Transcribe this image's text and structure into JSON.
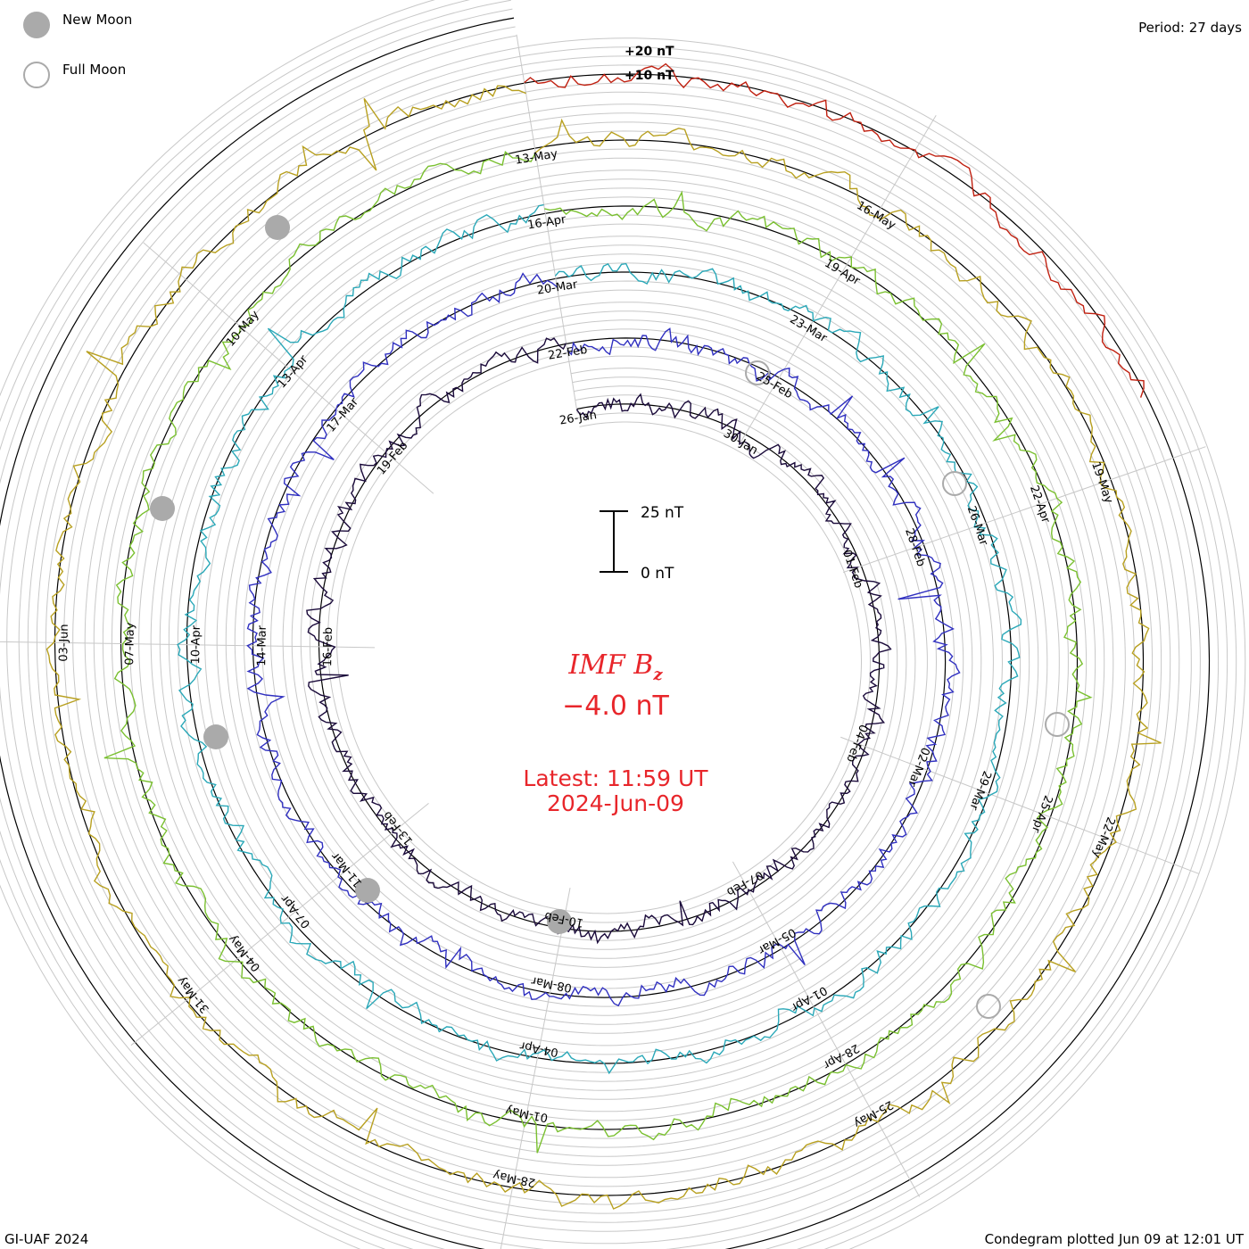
{
  "legend": {
    "new_moon_label": "New Moon",
    "full_moon_label": "Full Moon",
    "new_moon_color": "#aaaaaa",
    "full_moon_color": "#aaaaaa"
  },
  "period_label": "Period: 27 days",
  "credit": "GI-UAF 2024",
  "plotted_label": "Condegram plotted Jun 09 at 12:01 UT",
  "center": {
    "title_main": "IMF B",
    "title_sub": "z",
    "value": "−4.0 nT",
    "latest": "Latest: 11:59 UT",
    "date": "2024-Jun-09",
    "color": "#e8262b"
  },
  "chart_data": {
    "type": "line",
    "subtype": "condegram (spiral time series)",
    "title": "IMF Bz",
    "units": "nT",
    "period_days": 27,
    "latest_value": -4.0,
    "scale_bar": {
      "top_label": "25 nT",
      "bottom_label": "0 nT",
      "span_nT": 25
    },
    "reference_labels": [
      "+20 nT",
      "+10 nT"
    ],
    "cycles": [
      {
        "color": "#1a0a3a",
        "date_labels": [
          "26-Jan",
          "30-Jan",
          "01-Feb",
          "04-Feb",
          "07-Feb",
          "10-Feb",
          "13-Feb",
          "16-Feb",
          "19-Feb"
        ]
      },
      {
        "color": "#3030c0",
        "date_labels": [
          "22-Feb",
          "25-Feb",
          "28-Feb",
          "02-Mar",
          "05-Mar",
          "08-Mar",
          "11-Mar",
          "14-Mar",
          "17-Mar"
        ]
      },
      {
        "color": "#2aa8b8",
        "date_labels": [
          "20-Mar",
          "23-Mar",
          "26-Mar",
          "29-Mar",
          "01-Apr",
          "04-Apr",
          "07-Apr",
          "10-Apr",
          "13-Apr"
        ]
      },
      {
        "color": "#7ac030",
        "date_labels": [
          "16-Apr",
          "19-Apr",
          "22-Apr",
          "25-Apr",
          "28-Apr",
          "01-May",
          "04-May",
          "07-May",
          "10-May"
        ]
      },
      {
        "color": "#b8a020",
        "date_labels": [
          "13-May",
          "16-May",
          "19-May",
          "22-May",
          "25-May",
          "28-May",
          "31-May",
          "03-Jun"
        ]
      },
      {
        "color": "#c02010",
        "date_labels": []
      }
    ],
    "new_moon_dates": [
      "10-Feb",
      "10-Mar",
      "08-Apr",
      "08-May",
      "06-Jun"
    ],
    "full_moon_dates": [
      "24-Feb",
      "25-Mar",
      "23-Apr",
      "23-May"
    ]
  }
}
